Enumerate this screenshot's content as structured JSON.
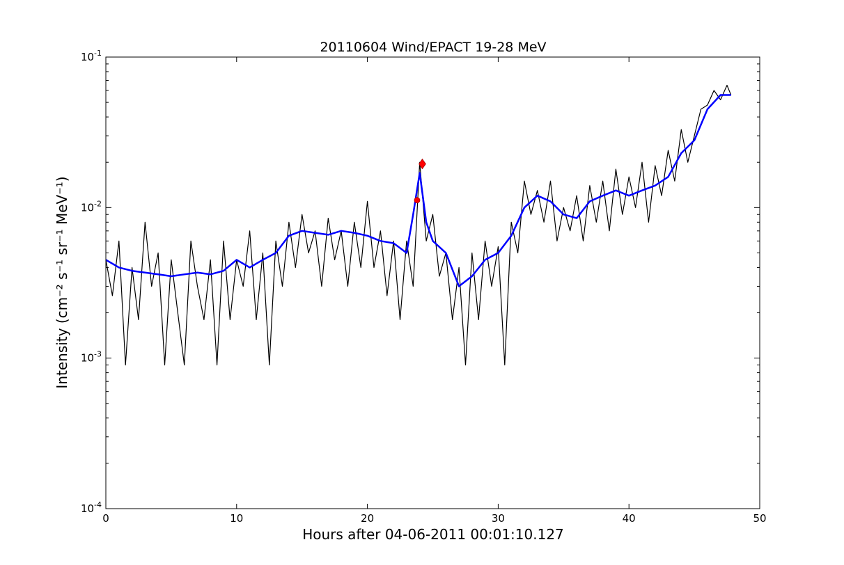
{
  "chart_data": {
    "type": "line",
    "title": "20110604 Wind/EPACT 19-28 MeV",
    "xlabel": "Hours after 04-06-2011 00:01:10.127",
    "ylabel": "Intensity (cm⁻² s⁻¹ sr⁻¹ MeV⁻¹)",
    "xlim": [
      0,
      50
    ],
    "ylim": [
      0.0001,
      0.1
    ],
    "yscale": "log",
    "grid": false,
    "x_ticks": [
      "0",
      "10",
      "20",
      "30",
      "40",
      "50"
    ],
    "x_tick_values": [
      0,
      10,
      20,
      30,
      40,
      50
    ],
    "y_ticks": [
      {
        "base": "10",
        "exp": "-4",
        "value": 0.0001
      },
      {
        "base": "10",
        "exp": "-3",
        "value": 0.001
      },
      {
        "base": "10",
        "exp": "-2",
        "value": 0.01
      },
      {
        "base": "10",
        "exp": "-1",
        "value": 0.1
      }
    ],
    "series": [
      {
        "role": "raw",
        "color": "#000000",
        "x": [
          0,
          0.5,
          1,
          1.5,
          2,
          2.5,
          3,
          3.5,
          4,
          4.5,
          5,
          5.5,
          6,
          6.5,
          7,
          7.5,
          8,
          8.5,
          9,
          9.5,
          10,
          10.5,
          11,
          11.5,
          12,
          12.5,
          13,
          13.5,
          14,
          14.5,
          15,
          15.5,
          16,
          16.5,
          17,
          17.5,
          18,
          18.5,
          19,
          19.5,
          20,
          20.5,
          21,
          21.5,
          22,
          22.5,
          23,
          23.5,
          24,
          24.5,
          25,
          25.5,
          26,
          26.5,
          27,
          27.5,
          28,
          28.5,
          29,
          29.5,
          30,
          30.5,
          31,
          31.5,
          32,
          32.5,
          33,
          33.5,
          34,
          34.5,
          35,
          35.5,
          36,
          36.5,
          37,
          37.5,
          38,
          38.5,
          39,
          39.5,
          40,
          40.5,
          41,
          41.5,
          42,
          42.5,
          43,
          43.5,
          44,
          44.5,
          45,
          45.5,
          46,
          46.5,
          47,
          47.5,
          47.8
        ],
        "y": [
          0.0045,
          0.0026,
          0.006,
          0.0009,
          0.004,
          0.0018,
          0.008,
          0.003,
          0.005,
          0.0009,
          0.0045,
          0.002,
          0.0009,
          0.006,
          0.003,
          0.0018,
          0.0045,
          0.0009,
          0.006,
          0.0018,
          0.0045,
          0.003,
          0.007,
          0.0018,
          0.005,
          0.0009,
          0.006,
          0.003,
          0.008,
          0.004,
          0.009,
          0.005,
          0.007,
          0.003,
          0.0085,
          0.0045,
          0.007,
          0.003,
          0.008,
          0.004,
          0.011,
          0.004,
          0.007,
          0.0026,
          0.006,
          0.0018,
          0.006,
          0.003,
          0.02,
          0.006,
          0.009,
          0.0035,
          0.005,
          0.0018,
          0.004,
          0.0009,
          0.005,
          0.0018,
          0.006,
          0.003,
          0.0055,
          0.0009,
          0.008,
          0.005,
          0.015,
          0.009,
          0.013,
          0.008,
          0.015,
          0.006,
          0.01,
          0.007,
          0.012,
          0.006,
          0.014,
          0.008,
          0.015,
          0.007,
          0.018,
          0.009,
          0.016,
          0.01,
          0.02,
          0.008,
          0.019,
          0.012,
          0.024,
          0.015,
          0.033,
          0.02,
          0.03,
          0.045,
          0.048,
          0.06,
          0.052,
          0.065,
          0.056
        ]
      },
      {
        "role": "smoothed",
        "color": "#0000ff",
        "x": [
          0,
          1,
          2,
          3,
          4,
          5,
          6,
          7,
          8,
          9,
          10,
          11,
          12,
          13,
          14,
          15,
          16,
          17,
          18,
          19,
          20,
          21,
          22,
          23,
          23.5,
          24,
          24.5,
          25,
          26,
          27,
          28,
          29,
          30,
          31,
          32,
          33,
          34,
          35,
          36,
          37,
          38,
          39,
          40,
          41,
          42,
          43,
          44,
          45,
          46,
          47,
          47.8
        ],
        "y": [
          0.0045,
          0.004,
          0.0038,
          0.0037,
          0.0036,
          0.0035,
          0.0036,
          0.0037,
          0.0036,
          0.0038,
          0.0045,
          0.004,
          0.0045,
          0.005,
          0.0065,
          0.007,
          0.0068,
          0.0066,
          0.007,
          0.0068,
          0.0065,
          0.006,
          0.0058,
          0.005,
          0.009,
          0.017,
          0.008,
          0.006,
          0.005,
          0.003,
          0.0035,
          0.0045,
          0.005,
          0.0065,
          0.01,
          0.012,
          0.011,
          0.009,
          0.0085,
          0.011,
          0.012,
          0.013,
          0.012,
          0.013,
          0.014,
          0.016,
          0.023,
          0.028,
          0.045,
          0.056,
          0.056
        ]
      }
    ],
    "markers": [
      {
        "x": 23.8,
        "y": 0.0112,
        "shape": "circle",
        "color": "#ff0000"
      },
      {
        "x": 24.2,
        "y": 0.0195,
        "shape": "diamond",
        "color": "#ff0000"
      }
    ]
  }
}
